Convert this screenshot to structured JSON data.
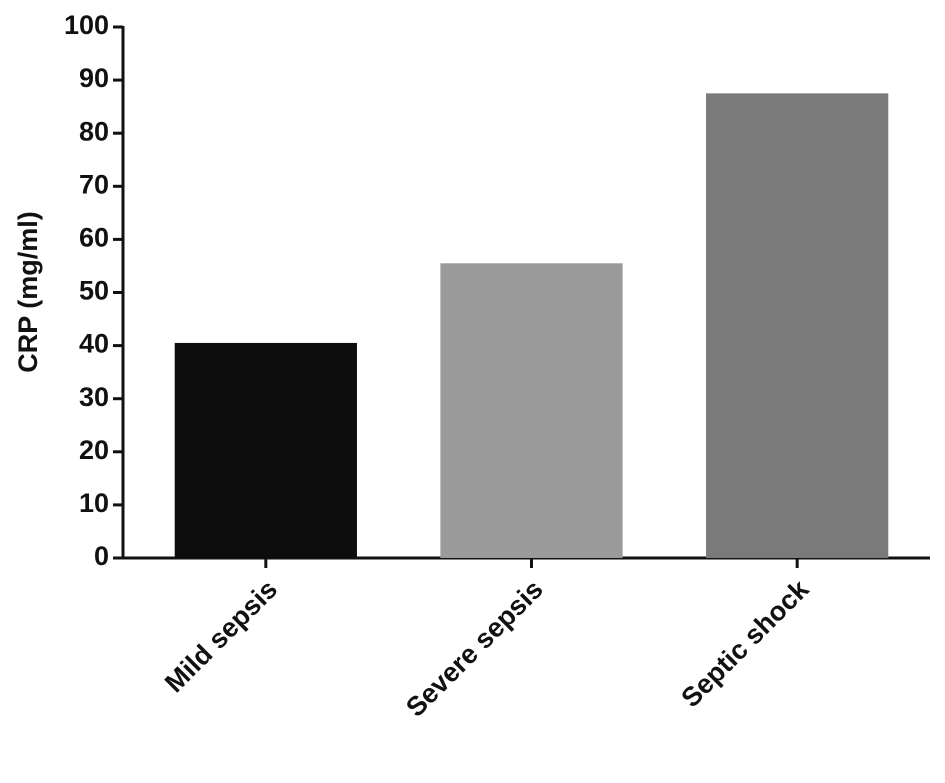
{
  "chart_data": {
    "type": "bar",
    "y_label": "CRP (mg/ml)",
    "categories": [
      "Mild sepsis",
      "Severe sepsis",
      "Septic shock"
    ],
    "values": [
      40.5,
      55.5,
      87.5
    ],
    "colors": [
      "#0d0d0d",
      "#9a9a9a",
      "#7a7a7a"
    ],
    "ylim": [
      0,
      100
    ],
    "yticks": [
      0,
      10,
      20,
      30,
      40,
      50,
      60,
      70,
      80,
      90,
      100
    ],
    "grid": false
  }
}
